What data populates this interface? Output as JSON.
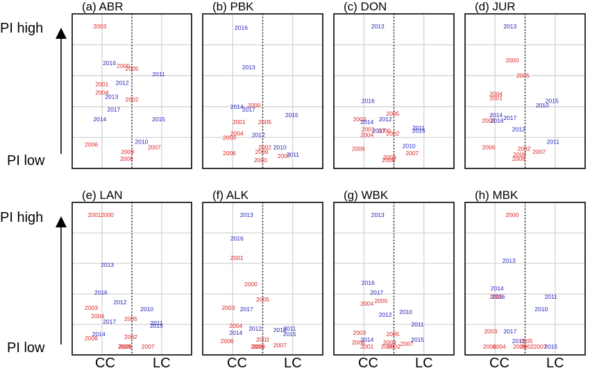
{
  "colors": {
    "cc": "#dd2222",
    "lc": "#2222bb",
    "grid": "#d3d3d3",
    "frame": "#000000"
  },
  "chart_data": {
    "type": "scatter",
    "description_axes": {
      "ylabel_top": "PI high",
      "ylabel_bottom": "PI low",
      "xlabel_left": "CC",
      "xlabel_right": "LC"
    },
    "x_range": [
      0,
      1
    ],
    "y_range": [
      0,
      1
    ],
    "divider_x": 0.5,
    "panels": [
      {
        "title": "(a) ABR",
        "points": [
          {
            "year": "2003",
            "x": 0.2,
            "y": 0.96,
            "group": "cc"
          },
          {
            "year": "2016",
            "x": 0.29,
            "y": 0.7,
            "group": "lc"
          },
          {
            "year": "2000",
            "x": 0.42,
            "y": 0.68,
            "group": "cc"
          },
          {
            "year": "2005",
            "x": 0.5,
            "y": 0.66,
            "group": "cc"
          },
          {
            "year": "2011",
            "x": 0.75,
            "y": 0.62,
            "group": "lc"
          },
          {
            "year": "2012",
            "x": 0.41,
            "y": 0.56,
            "group": "lc"
          },
          {
            "year": "2001",
            "x": 0.22,
            "y": 0.55,
            "group": "cc"
          },
          {
            "year": "2004",
            "x": 0.22,
            "y": 0.49,
            "group": "cc"
          },
          {
            "year": "2013",
            "x": 0.31,
            "y": 0.46,
            "group": "lc"
          },
          {
            "year": "2002",
            "x": 0.5,
            "y": 0.44,
            "group": "cc"
          },
          {
            "year": "2017",
            "x": 0.33,
            "y": 0.37,
            "group": "lc"
          },
          {
            "year": "2014",
            "x": 0.2,
            "y": 0.3,
            "group": "lc"
          },
          {
            "year": "2015",
            "x": 0.75,
            "y": 0.3,
            "group": "lc"
          },
          {
            "year": "2010",
            "x": 0.59,
            "y": 0.14,
            "group": "lc"
          },
          {
            "year": "2006",
            "x": 0.12,
            "y": 0.12,
            "group": "cc"
          },
          {
            "year": "2007",
            "x": 0.71,
            "y": 0.1,
            "group": "cc"
          },
          {
            "year": "2009",
            "x": 0.46,
            "y": 0.07,
            "group": "cc"
          },
          {
            "year": "2008",
            "x": 0.45,
            "y": 0.02,
            "group": "cc"
          }
        ]
      },
      {
        "title": "(b) PBK",
        "points": [
          {
            "year": "2016",
            "x": 0.3,
            "y": 0.95,
            "group": "lc"
          },
          {
            "year": "2013",
            "x": 0.37,
            "y": 0.67,
            "group": "lc"
          },
          {
            "year": "2000",
            "x": 0.42,
            "y": 0.4,
            "group": "cc"
          },
          {
            "year": "2014",
            "x": 0.26,
            "y": 0.39,
            "group": "lc"
          },
          {
            "year": "2017",
            "x": 0.37,
            "y": 0.37,
            "group": "lc"
          },
          {
            "year": "2015",
            "x": 0.77,
            "y": 0.33,
            "group": "lc"
          },
          {
            "year": "2001",
            "x": 0.28,
            "y": 0.28,
            "group": "cc"
          },
          {
            "year": "2005",
            "x": 0.52,
            "y": 0.28,
            "group": "cc"
          },
          {
            "year": "2004",
            "x": 0.26,
            "y": 0.2,
            "group": "cc"
          },
          {
            "year": "2012",
            "x": 0.46,
            "y": 0.19,
            "group": "lc"
          },
          {
            "year": "2003",
            "x": 0.19,
            "y": 0.17,
            "group": "cc"
          },
          {
            "year": "2002",
            "x": 0.52,
            "y": 0.1,
            "group": "cc"
          },
          {
            "year": "2010",
            "x": 0.66,
            "y": 0.1,
            "group": "lc"
          },
          {
            "year": "2006",
            "x": 0.19,
            "y": 0.06,
            "group": "cc"
          },
          {
            "year": "2009",
            "x": 0.49,
            "y": 0.07,
            "group": "cc"
          },
          {
            "year": "2007",
            "x": 0.7,
            "y": 0.04,
            "group": "cc"
          },
          {
            "year": "2011",
            "x": 0.78,
            "y": 0.05,
            "group": "lc"
          },
          {
            "year": "2000",
            "x": 0.48,
            "y": 0.01,
            "group": "cc"
          }
        ]
      },
      {
        "title": "(c) DON",
        "points": [
          {
            "year": "2013",
            "x": 0.35,
            "y": 0.96,
            "group": "lc"
          },
          {
            "year": "2016",
            "x": 0.26,
            "y": 0.43,
            "group": "lc"
          },
          {
            "year": "2005",
            "x": 0.49,
            "y": 0.34,
            "group": "cc"
          },
          {
            "year": "2003",
            "x": 0.18,
            "y": 0.3,
            "group": "cc"
          },
          {
            "year": "2012",
            "x": 0.42,
            "y": 0.3,
            "group": "lc"
          },
          {
            "year": "2014",
            "x": 0.25,
            "y": 0.28,
            "group": "lc"
          },
          {
            "year": "2001",
            "x": 0.26,
            "y": 0.23,
            "group": "cc"
          },
          {
            "year": "2017",
            "x": 0.36,
            "y": 0.22,
            "group": "lc"
          },
          {
            "year": "2000",
            "x": 0.41,
            "y": 0.22,
            "group": "cc"
          },
          {
            "year": "2011",
            "x": 0.73,
            "y": 0.24,
            "group": "lc"
          },
          {
            "year": "2015",
            "x": 0.73,
            "y": 0.22,
            "group": "lc"
          },
          {
            "year": "2004",
            "x": 0.25,
            "y": 0.19,
            "group": "cc"
          },
          {
            "year": "2002",
            "x": 0.49,
            "y": 0.2,
            "group": "cc"
          },
          {
            "year": "2010",
            "x": 0.64,
            "y": 0.11,
            "group": "lc"
          },
          {
            "year": "2006",
            "x": 0.17,
            "y": 0.09,
            "group": "cc"
          },
          {
            "year": "2007",
            "x": 0.67,
            "y": 0.06,
            "group": "cc"
          },
          {
            "year": "2009",
            "x": 0.46,
            "y": 0.03,
            "group": "cc"
          },
          {
            "year": "2008",
            "x": 0.45,
            "y": 0.01,
            "group": "cc"
          }
        ]
      },
      {
        "title": "(d) JUR",
        "points": [
          {
            "year": "2013",
            "x": 0.36,
            "y": 0.96,
            "group": "lc"
          },
          {
            "year": "2000",
            "x": 0.38,
            "y": 0.72,
            "group": "cc"
          },
          {
            "year": "2005",
            "x": 0.48,
            "y": 0.61,
            "group": "cc"
          },
          {
            "year": "2004",
            "x": 0.23,
            "y": 0.48,
            "group": "cc"
          },
          {
            "year": "2001",
            "x": 0.23,
            "y": 0.45,
            "group": "cc"
          },
          {
            "year": "2015",
            "x": 0.75,
            "y": 0.43,
            "group": "lc"
          },
          {
            "year": "2010",
            "x": 0.66,
            "y": 0.4,
            "group": "lc"
          },
          {
            "year": "2014",
            "x": 0.23,
            "y": 0.33,
            "group": "lc"
          },
          {
            "year": "2017",
            "x": 0.36,
            "y": 0.31,
            "group": "lc"
          },
          {
            "year": "2003",
            "x": 0.16,
            "y": 0.29,
            "group": "cc"
          },
          {
            "year": "2016",
            "x": 0.24,
            "y": 0.29,
            "group": "lc"
          },
          {
            "year": "2012",
            "x": 0.44,
            "y": 0.23,
            "group": "lc"
          },
          {
            "year": "2011",
            "x": 0.76,
            "y": 0.14,
            "group": "lc"
          },
          {
            "year": "2006",
            "x": 0.16,
            "y": 0.1,
            "group": "cc"
          },
          {
            "year": "2002",
            "x": 0.49,
            "y": 0.09,
            "group": "cc"
          },
          {
            "year": "2007",
            "x": 0.63,
            "y": 0.07,
            "group": "cc"
          },
          {
            "year": "2009",
            "x": 0.45,
            "y": 0.05,
            "group": "cc"
          },
          {
            "year": "2008",
            "x": 0.44,
            "y": 0.02,
            "group": "cc"
          }
        ]
      },
      {
        "title": "(e) LAN",
        "points": [
          {
            "year": "2001",
            "x": 0.15,
            "y": 0.96,
            "group": "cc"
          },
          {
            "year": "2000",
            "x": 0.27,
            "y": 0.96,
            "group": "cc"
          },
          {
            "year": "2013",
            "x": 0.27,
            "y": 0.6,
            "group": "lc"
          },
          {
            "year": "2016",
            "x": 0.21,
            "y": 0.4,
            "group": "lc"
          },
          {
            "year": "2012",
            "x": 0.39,
            "y": 0.33,
            "group": "lc"
          },
          {
            "year": "2003",
            "x": 0.12,
            "y": 0.29,
            "group": "cc"
          },
          {
            "year": "2010",
            "x": 0.64,
            "y": 0.28,
            "group": "lc"
          },
          {
            "year": "2004",
            "x": 0.18,
            "y": 0.23,
            "group": "cc"
          },
          {
            "year": "2005",
            "x": 0.49,
            "y": 0.21,
            "group": "cc"
          },
          {
            "year": "2017",
            "x": 0.29,
            "y": 0.19,
            "group": "lc"
          },
          {
            "year": "2011",
            "x": 0.73,
            "y": 0.18,
            "group": "lc"
          },
          {
            "year": "2015",
            "x": 0.73,
            "y": 0.16,
            "group": "lc"
          },
          {
            "year": "2014",
            "x": 0.19,
            "y": 0.1,
            "group": "lc"
          },
          {
            "year": "2006",
            "x": 0.12,
            "y": 0.07,
            "group": "cc"
          },
          {
            "year": "2002",
            "x": 0.49,
            "y": 0.08,
            "group": "cc"
          },
          {
            "year": "2007",
            "x": 0.65,
            "y": 0.01,
            "group": "cc"
          },
          {
            "year": "2009",
            "x": 0.44,
            "y": 0.01,
            "group": "cc"
          },
          {
            "year": "2008",
            "x": 0.43,
            "y": 0.01,
            "group": "cc"
          }
        ]
      },
      {
        "title": "(f) ALK",
        "points": [
          {
            "year": "2013",
            "x": 0.35,
            "y": 0.96,
            "group": "lc"
          },
          {
            "year": "2016",
            "x": 0.26,
            "y": 0.79,
            "group": "lc"
          },
          {
            "year": "2001",
            "x": 0.26,
            "y": 0.65,
            "group": "cc"
          },
          {
            "year": "2000",
            "x": 0.39,
            "y": 0.46,
            "group": "cc"
          },
          {
            "year": "2005",
            "x": 0.5,
            "y": 0.35,
            "group": "cc"
          },
          {
            "year": "2003",
            "x": 0.18,
            "y": 0.29,
            "group": "cc"
          },
          {
            "year": "2017",
            "x": 0.35,
            "y": 0.28,
            "group": "lc"
          },
          {
            "year": "2004",
            "x": 0.25,
            "y": 0.16,
            "group": "cc"
          },
          {
            "year": "2012",
            "x": 0.43,
            "y": 0.14,
            "group": "lc"
          },
          {
            "year": "2010",
            "x": 0.66,
            "y": 0.13,
            "group": "lc"
          },
          {
            "year": "2011",
            "x": 0.75,
            "y": 0.14,
            "group": "lc"
          },
          {
            "year": "2014",
            "x": 0.25,
            "y": 0.11,
            "group": "lc"
          },
          {
            "year": "2015",
            "x": 0.75,
            "y": 0.1,
            "group": "lc"
          },
          {
            "year": "2006",
            "x": 0.17,
            "y": 0.05,
            "group": "cc"
          },
          {
            "year": "2002",
            "x": 0.5,
            "y": 0.06,
            "group": "cc"
          },
          {
            "year": "2007",
            "x": 0.66,
            "y": 0.02,
            "group": "cc"
          },
          {
            "year": "2009",
            "x": 0.46,
            "y": 0.01,
            "group": "cc"
          },
          {
            "year": "2008",
            "x": 0.45,
            "y": 0.01,
            "group": "cc"
          }
        ]
      },
      {
        "title": "(g) WBK",
        "points": [
          {
            "year": "2013",
            "x": 0.35,
            "y": 0.96,
            "group": "lc"
          },
          {
            "year": "2016",
            "x": 0.26,
            "y": 0.47,
            "group": "lc"
          },
          {
            "year": "2017",
            "x": 0.34,
            "y": 0.4,
            "group": "lc"
          },
          {
            "year": "2004",
            "x": 0.25,
            "y": 0.32,
            "group": "cc"
          },
          {
            "year": "2000",
            "x": 0.38,
            "y": 0.34,
            "group": "cc"
          },
          {
            "year": "2010",
            "x": 0.61,
            "y": 0.26,
            "group": "lc"
          },
          {
            "year": "2012",
            "x": 0.42,
            "y": 0.24,
            "group": "lc"
          },
          {
            "year": "2011",
            "x": 0.72,
            "y": 0.17,
            "group": "lc"
          },
          {
            "year": "2003",
            "x": 0.18,
            "y": 0.11,
            "group": "cc"
          },
          {
            "year": "2005",
            "x": 0.49,
            "y": 0.1,
            "group": "cc"
          },
          {
            "year": "2014",
            "x": 0.25,
            "y": 0.06,
            "group": "lc"
          },
          {
            "year": "2015",
            "x": 0.72,
            "y": 0.06,
            "group": "lc"
          },
          {
            "year": "2006",
            "x": 0.17,
            "y": 0.04,
            "group": "cc"
          },
          {
            "year": "2009",
            "x": 0.46,
            "y": 0.04,
            "group": "cc"
          },
          {
            "year": "2007",
            "x": 0.62,
            "y": 0.03,
            "group": "cc"
          },
          {
            "year": "2001",
            "x": 0.25,
            "y": 0.01,
            "group": "cc"
          },
          {
            "year": "2008",
            "x": 0.44,
            "y": 0.01,
            "group": "cc"
          },
          {
            "year": "2002",
            "x": 0.5,
            "y": 0.01,
            "group": "cc"
          }
        ]
      },
      {
        "title": "(h) MBK",
        "points": [
          {
            "year": "2000",
            "x": 0.38,
            "y": 0.96,
            "group": "cc"
          },
          {
            "year": "2013",
            "x": 0.35,
            "y": 0.63,
            "group": "lc"
          },
          {
            "year": "2014",
            "x": 0.24,
            "y": 0.43,
            "group": "lc"
          },
          {
            "year": "2001",
            "x": 0.23,
            "y": 0.37,
            "group": "cc"
          },
          {
            "year": "2016",
            "x": 0.25,
            "y": 0.37,
            "group": "lc"
          },
          {
            "year": "2011",
            "x": 0.74,
            "y": 0.37,
            "group": "lc"
          },
          {
            "year": "2010",
            "x": 0.65,
            "y": 0.28,
            "group": "lc"
          },
          {
            "year": "2003",
            "x": 0.18,
            "y": 0.12,
            "group": "cc"
          },
          {
            "year": "2017",
            "x": 0.36,
            "y": 0.12,
            "group": "lc"
          },
          {
            "year": "2012",
            "x": 0.44,
            "y": 0.05,
            "group": "lc"
          },
          {
            "year": "2005",
            "x": 0.51,
            "y": 0.05,
            "group": "cc"
          },
          {
            "year": "2006",
            "x": 0.17,
            "y": 0.01,
            "group": "cc"
          },
          {
            "year": "2004",
            "x": 0.26,
            "y": 0.01,
            "group": "cc"
          },
          {
            "year": "2009",
            "x": 0.45,
            "y": 0.01,
            "group": "cc"
          },
          {
            "year": "2002",
            "x": 0.52,
            "y": 0.01,
            "group": "cc"
          },
          {
            "year": "2007",
            "x": 0.64,
            "y": 0.01,
            "group": "cc"
          },
          {
            "year": "2015",
            "x": 0.74,
            "y": 0.01,
            "group": "lc"
          }
        ]
      }
    ]
  },
  "labels": {
    "pi_high": "PI high",
    "pi_low": "PI low",
    "cc": "CC",
    "lc": "LC"
  }
}
